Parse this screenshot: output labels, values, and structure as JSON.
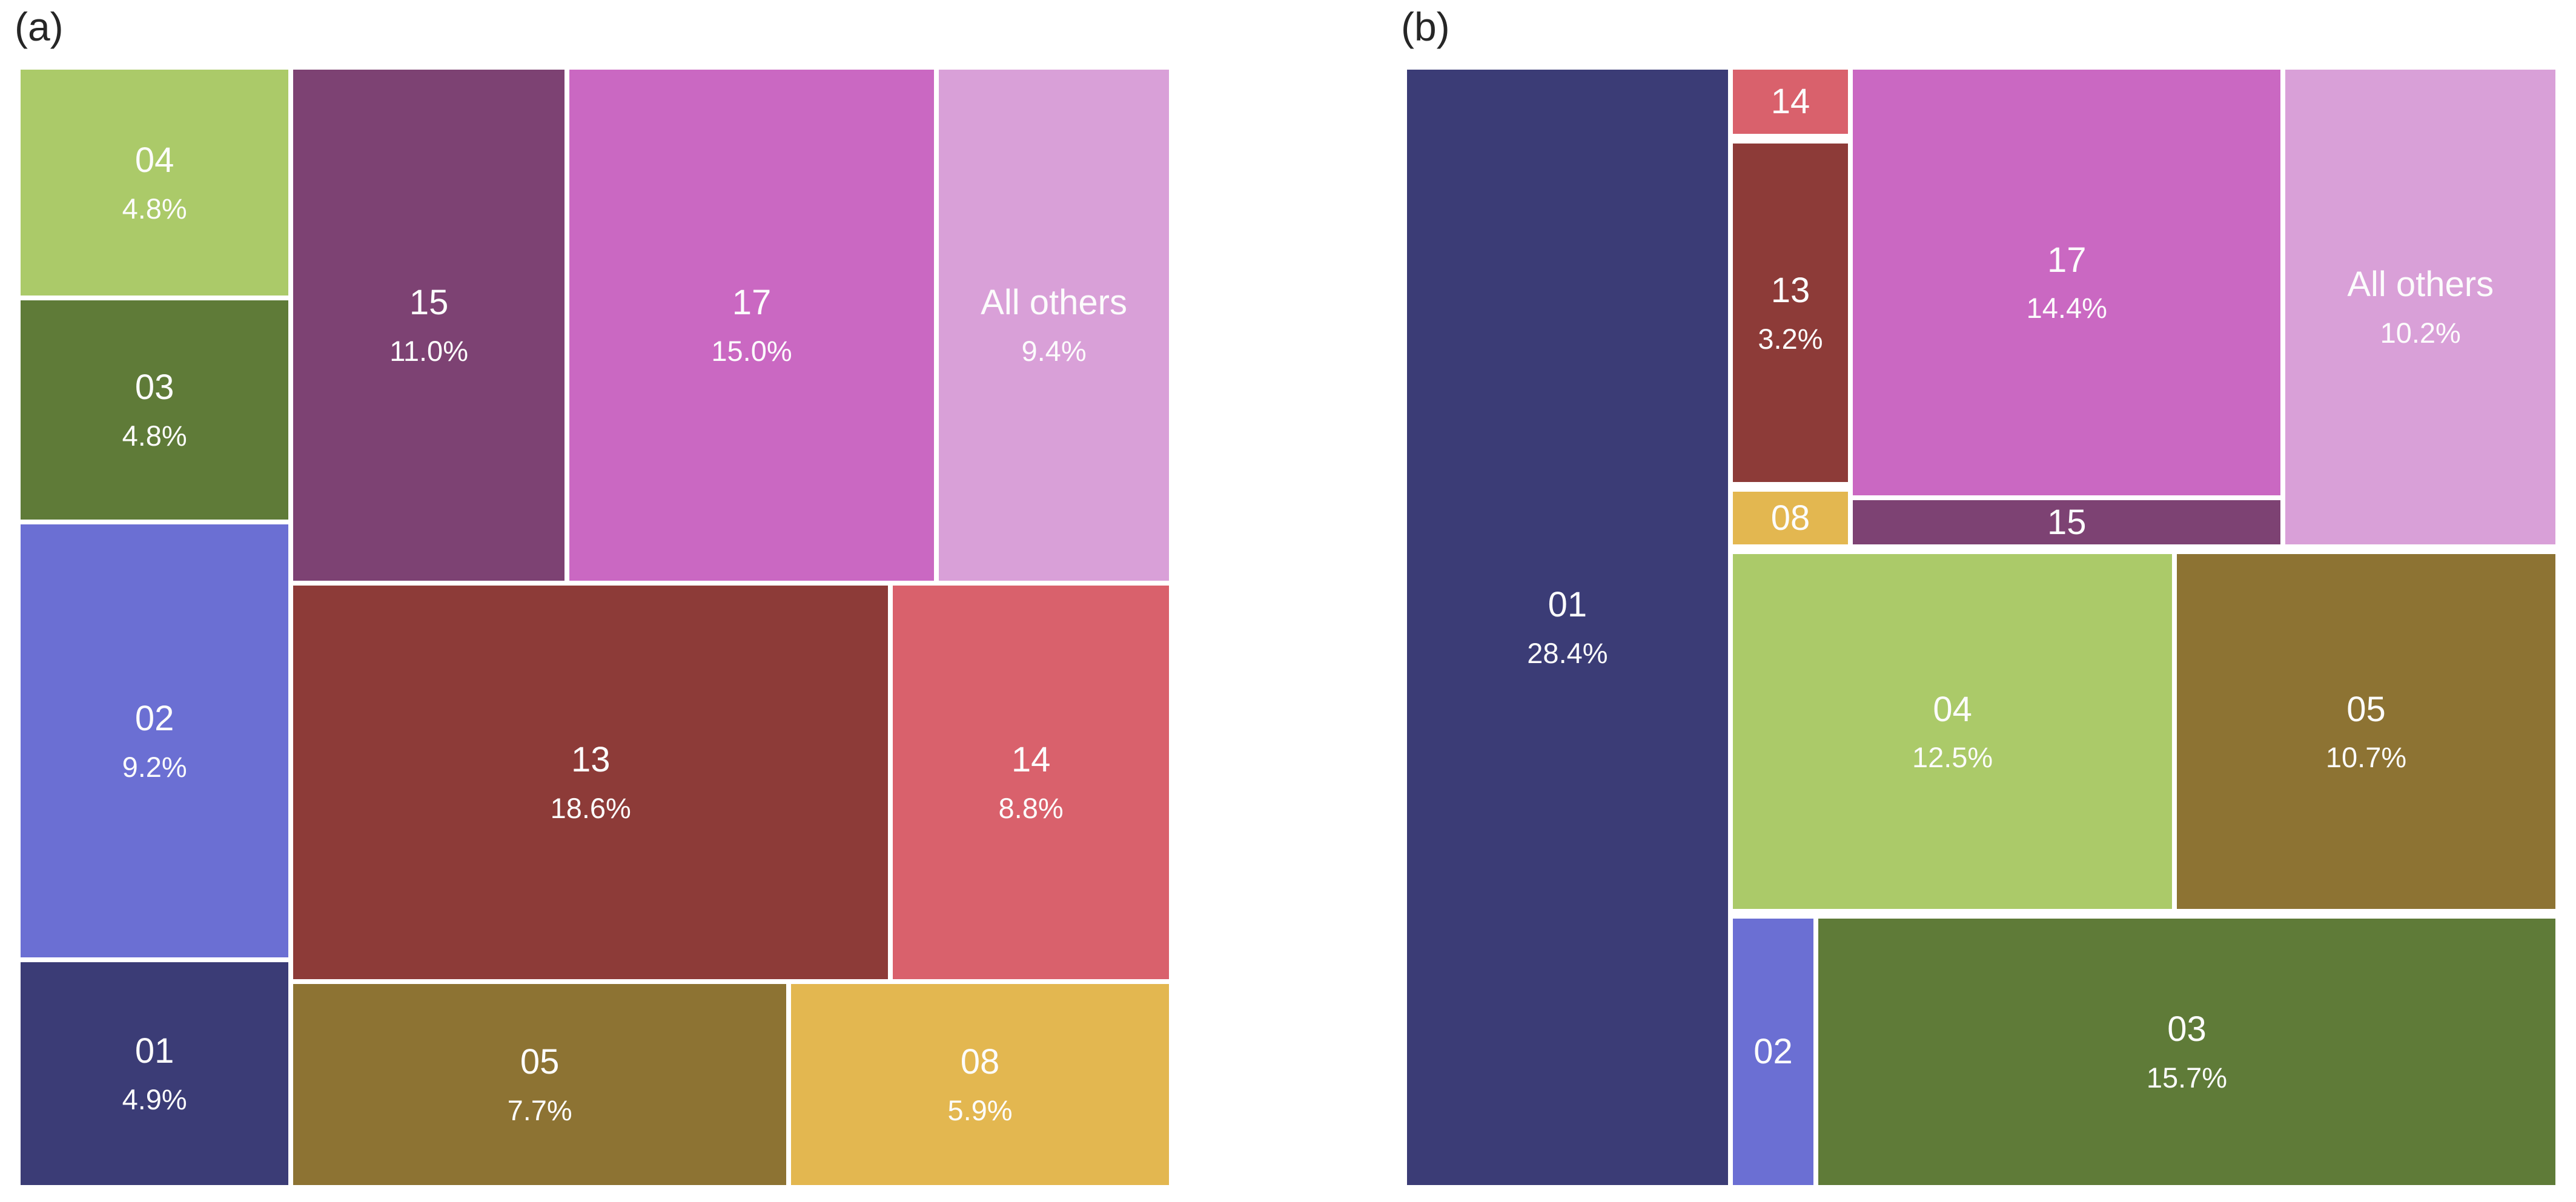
{
  "figure": {
    "background": "#ffffff",
    "cell_text_color": "#fcfcfc",
    "panel_label_color": "#262626",
    "panels": [
      {
        "id": "a",
        "label": "(a)"
      },
      {
        "id": "b",
        "label": "(b)"
      }
    ]
  },
  "palette": {
    "01": "#3b3c76",
    "02": "#6b6fd3",
    "03": "#5f7b38",
    "04": "#abca69",
    "05": "#8d7333",
    "08": "#e3b750",
    "13": "#8d3b38",
    "14": "#d9616c",
    "15": "#7d4273",
    "17": "#ca68c2",
    "All others": "#d9a0d8"
  },
  "chart_data": [
    {
      "type": "treemap",
      "panel": "(a)",
      "legend_position": "none",
      "cells": [
        {
          "label": "04",
          "pct_label": "4.8%",
          "value": 4.8,
          "color": "#abca69",
          "rect": {
            "x": 0.0,
            "y": 0.0,
            "w": 0.2365,
            "h": 0.206
          }
        },
        {
          "label": "03",
          "pct_label": "4.8%",
          "value": 4.8,
          "color": "#5f7b38",
          "rect": {
            "x": 0.0,
            "y": 0.206,
            "w": 0.2365,
            "h": 0.2
          }
        },
        {
          "label": "02",
          "pct_label": "9.2%",
          "value": 9.2,
          "color": "#6b6fd3",
          "rect": {
            "x": 0.0,
            "y": 0.406,
            "w": 0.2365,
            "h": 0.391
          }
        },
        {
          "label": "01",
          "pct_label": "4.9%",
          "value": 4.9,
          "color": "#3b3c76",
          "rect": {
            "x": 0.0,
            "y": 0.797,
            "w": 0.2365,
            "h": 0.203
          }
        },
        {
          "label": "15",
          "pct_label": "11.0%",
          "value": 11.0,
          "color": "#7d4273",
          "rect": {
            "x": 0.2365,
            "y": 0.0,
            "w": 0.2393,
            "h": 0.4604
          }
        },
        {
          "label": "17",
          "pct_label": "15.0%",
          "value": 15.0,
          "color": "#ca68c2",
          "rect": {
            "x": 0.4758,
            "y": 0.0,
            "w": 0.3205,
            "h": 0.4604
          }
        },
        {
          "label": "All others",
          "pct_label": "9.4%",
          "value": 9.4,
          "color": "#d9a0d8",
          "rect": {
            "x": 0.7963,
            "y": 0.0,
            "w": 0.2037,
            "h": 0.4604
          }
        },
        {
          "label": "13",
          "pct_label": "18.6%",
          "value": 18.6,
          "color": "#8d3b38",
          "rect": {
            "x": 0.2365,
            "y": 0.4604,
            "w": 0.5199,
            "h": 0.3556
          }
        },
        {
          "label": "14",
          "pct_label": "8.8%",
          "value": 8.8,
          "color": "#d9616c",
          "rect": {
            "x": 0.7564,
            "y": 0.4604,
            "w": 0.2436,
            "h": 0.3556
          }
        },
        {
          "label": "05",
          "pct_label": "7.7%",
          "value": 7.7,
          "color": "#8d7333",
          "rect": {
            "x": 0.2365,
            "y": 0.816,
            "w": 0.4316,
            "h": 0.184
          }
        },
        {
          "label": "08",
          "pct_label": "5.9%",
          "value": 5.9,
          "color": "#e3b750",
          "rect": {
            "x": 0.6681,
            "y": 0.816,
            "w": 0.3319,
            "h": 0.184
          }
        }
      ]
    },
    {
      "type": "treemap",
      "panel": "(b)",
      "legend_position": "none",
      "cells": [
        {
          "label": "01",
          "pct_label": "28.4%",
          "value": 28.4,
          "color": "#3b3c76",
          "rect": {
            "x": 0.0,
            "y": 0.0,
            "w": 0.2825,
            "h": 1.0
          }
        },
        {
          "label": "14",
          "pct_label": "",
          "value": null,
          "color": "#d9616c",
          "rect": {
            "x": 0.2825,
            "y": 0.0,
            "w": 0.1041,
            "h": 0.0616
          }
        },
        {
          "label": "13",
          "pct_label": "3.2%",
          "value": 3.2,
          "color": "#8d3b38",
          "rect": {
            "x": 0.2825,
            "y": 0.066,
            "w": 0.1041,
            "h": 0.3065
          }
        },
        {
          "label": "08",
          "pct_label": "",
          "value": null,
          "color": "#e3b750",
          "rect": {
            "x": 0.2825,
            "y": 0.3768,
            "w": 0.1041,
            "h": 0.0513
          }
        },
        {
          "label": "17",
          "pct_label": "14.4%",
          "value": 14.4,
          "color": "#ca68c2",
          "rect": {
            "x": 0.3866,
            "y": 0.0,
            "w": 0.3752,
            "h": 0.3842
          }
        },
        {
          "label": "15",
          "pct_label": "",
          "value": null,
          "color": "#7d4273",
          "rect": {
            "x": 0.3866,
            "y": 0.3842,
            "w": 0.3752,
            "h": 0.044
          }
        },
        {
          "label": "All others",
          "pct_label": "10.2%",
          "value": 10.2,
          "color": "#d9a0d8",
          "rect": {
            "x": 0.7618,
            "y": 0.0,
            "w": 0.2382,
            "h": 0.4282
          }
        },
        {
          "label": "04",
          "pct_label": "12.5%",
          "value": 12.5,
          "color": "#abca69",
          "rect": {
            "x": 0.2825,
            "y": 0.4326,
            "w": 0.3852,
            "h": 0.3211
          }
        },
        {
          "label": "05",
          "pct_label": "10.7%",
          "value": 10.7,
          "color": "#8d7333",
          "rect": {
            "x": 0.6676,
            "y": 0.4326,
            "w": 0.3324,
            "h": 0.3211
          }
        },
        {
          "label": "02",
          "pct_label": "",
          "value": null,
          "color": "#6b6fd3",
          "rect": {
            "x": 0.2825,
            "y": 0.7581,
            "w": 0.0742,
            "h": 0.2419
          }
        },
        {
          "label": "03",
          "pct_label": "15.7%",
          "value": 15.7,
          "color": "#5f7b38",
          "rect": {
            "x": 0.3566,
            "y": 0.7581,
            "w": 0.6434,
            "h": 0.2419
          }
        }
      ]
    }
  ]
}
